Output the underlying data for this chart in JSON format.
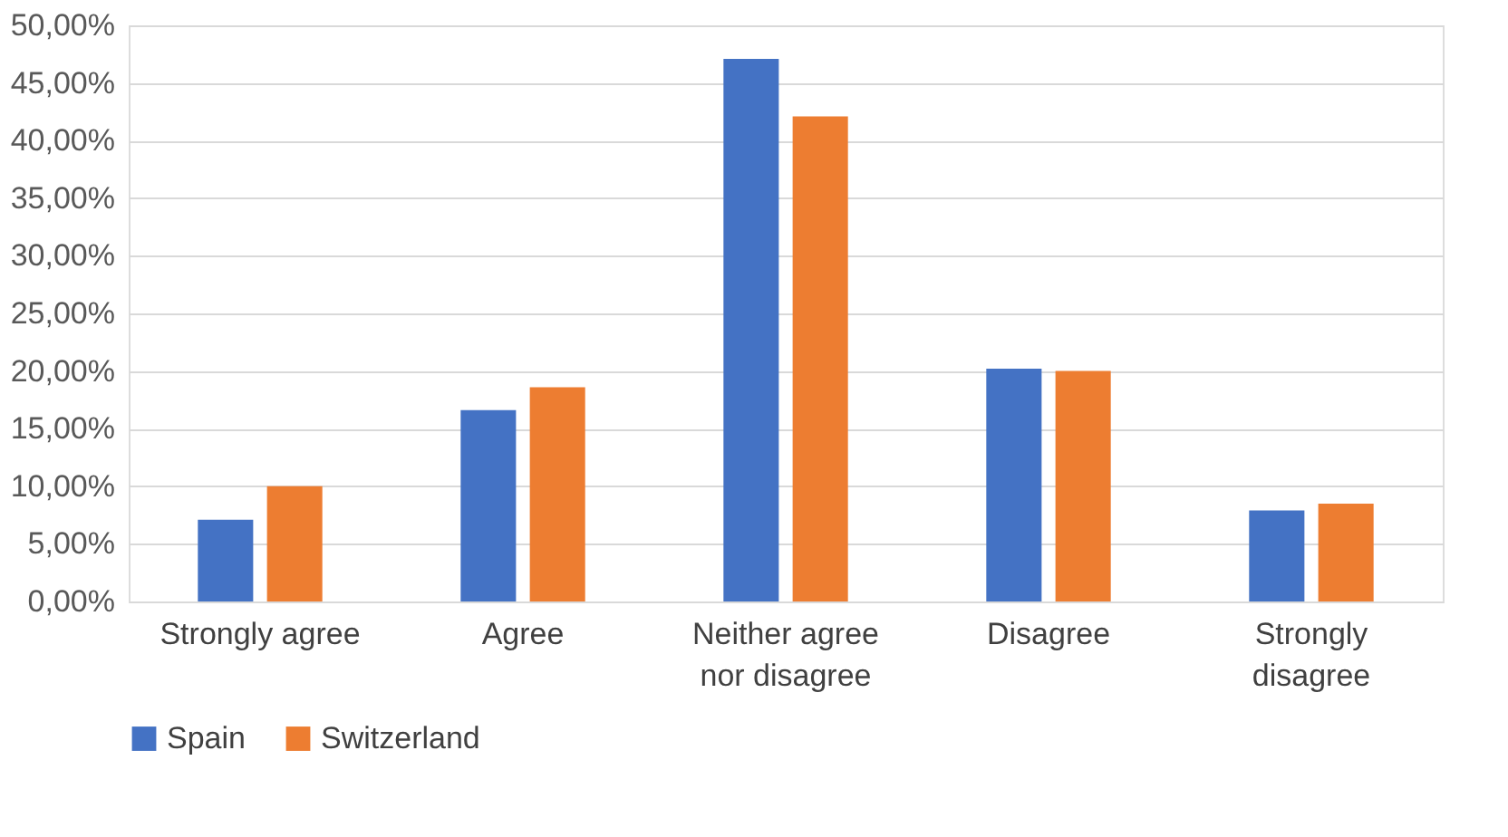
{
  "chart_data": {
    "type": "bar",
    "categories": [
      "Strongly agree",
      "Agree",
      "Neither agree nor disagree",
      "Disagree",
      "Strongly disagree"
    ],
    "series": [
      {
        "name": "Spain",
        "color": "#4472c4",
        "values": [
          7.1,
          16.6,
          47.1,
          20.2,
          7.9
        ]
      },
      {
        "name": "Switzerland",
        "color": "#ed7d31",
        "values": [
          10.0,
          18.6,
          42.1,
          20.0,
          8.5
        ]
      }
    ],
    "ylim": [
      0,
      50
    ],
    "yticks": [
      {
        "value": 0,
        "label": "0,00%"
      },
      {
        "value": 5,
        "label": "5,00%"
      },
      {
        "value": 10,
        "label": "10,00%"
      },
      {
        "value": 15,
        "label": "15,00%"
      },
      {
        "value": 20,
        "label": "20,00%"
      },
      {
        "value": 25,
        "label": "25,00%"
      },
      {
        "value": 30,
        "label": "30,00%"
      },
      {
        "value": 35,
        "label": "35,00%"
      },
      {
        "value": 40,
        "label": "40,00%"
      },
      {
        "value": 45,
        "label": "45,00%"
      },
      {
        "value": 50,
        "label": "50,00%"
      }
    ],
    "grid": "y",
    "legend": "bottom"
  }
}
